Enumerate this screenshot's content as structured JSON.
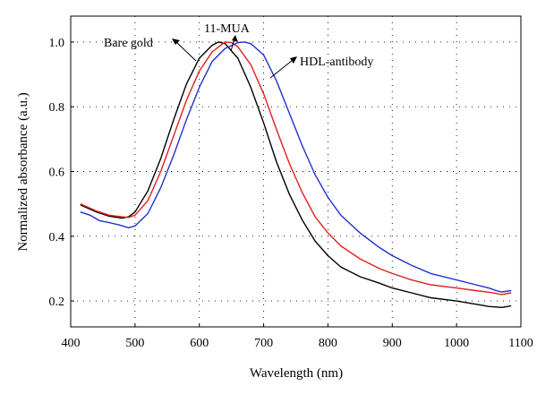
{
  "chart_data": {
    "type": "line",
    "title": "",
    "xlabel": "Wavelength (nm)",
    "ylabel": "Normalized absorbance (a.u.)",
    "xlim": [
      400,
      1100
    ],
    "ylim": [
      0.12,
      1.08
    ],
    "xticks": [
      400,
      500,
      600,
      700,
      800,
      900,
      1000,
      1100
    ],
    "yticks": [
      0.2,
      0.4,
      0.6,
      0.8,
      1.0
    ],
    "ytick_labels": [
      "0.2",
      "0.4",
      "0.6",
      "0.8",
      "1.0"
    ],
    "grid": true,
    "series": [
      {
        "name": "Bare gold",
        "color": "#000000",
        "points": [
          [
            415,
            0.497
          ],
          [
            440,
            0.475
          ],
          [
            460,
            0.462
          ],
          [
            480,
            0.456
          ],
          [
            490,
            0.46
          ],
          [
            500,
            0.475
          ],
          [
            520,
            0.54
          ],
          [
            540,
            0.64
          ],
          [
            560,
            0.76
          ],
          [
            580,
            0.87
          ],
          [
            600,
            0.95
          ],
          [
            620,
            0.99
          ],
          [
            630,
            1.0
          ],
          [
            640,
            0.995
          ],
          [
            660,
            0.95
          ],
          [
            680,
            0.86
          ],
          [
            700,
            0.75
          ],
          [
            720,
            0.63
          ],
          [
            740,
            0.53
          ],
          [
            760,
            0.45
          ],
          [
            780,
            0.385
          ],
          [
            800,
            0.34
          ],
          [
            820,
            0.305
          ],
          [
            850,
            0.275
          ],
          [
            880,
            0.255
          ],
          [
            900,
            0.24
          ],
          [
            930,
            0.225
          ],
          [
            960,
            0.21
          ],
          [
            1000,
            0.2
          ],
          [
            1030,
            0.19
          ],
          [
            1050,
            0.183
          ],
          [
            1070,
            0.18
          ],
          [
            1080,
            0.183
          ],
          [
            1085,
            0.185
          ]
        ]
      },
      {
        "name": "11-MUA",
        "color": "#e0201c",
        "points": [
          [
            415,
            0.5
          ],
          [
            440,
            0.478
          ],
          [
            460,
            0.465
          ],
          [
            480,
            0.46
          ],
          [
            490,
            0.458
          ],
          [
            500,
            0.465
          ],
          [
            520,
            0.51
          ],
          [
            540,
            0.6
          ],
          [
            560,
            0.71
          ],
          [
            580,
            0.82
          ],
          [
            600,
            0.91
          ],
          [
            620,
            0.97
          ],
          [
            640,
            1.0
          ],
          [
            650,
            0.998
          ],
          [
            660,
            0.985
          ],
          [
            680,
            0.93
          ],
          [
            700,
            0.84
          ],
          [
            720,
            0.73
          ],
          [
            740,
            0.625
          ],
          [
            760,
            0.535
          ],
          [
            780,
            0.46
          ],
          [
            800,
            0.41
          ],
          [
            820,
            0.37
          ],
          [
            850,
            0.33
          ],
          [
            880,
            0.3
          ],
          [
            900,
            0.285
          ],
          [
            930,
            0.265
          ],
          [
            960,
            0.25
          ],
          [
            1000,
            0.24
          ],
          [
            1030,
            0.232
          ],
          [
            1050,
            0.227
          ],
          [
            1060,
            0.224
          ],
          [
            1070,
            0.22
          ],
          [
            1085,
            0.225
          ]
        ]
      },
      {
        "name": "HDL-antibody",
        "color": "#1f30d0",
        "points": [
          [
            415,
            0.475
          ],
          [
            430,
            0.465
          ],
          [
            445,
            0.448
          ],
          [
            460,
            0.442
          ],
          [
            475,
            0.435
          ],
          [
            490,
            0.426
          ],
          [
            500,
            0.432
          ],
          [
            520,
            0.47
          ],
          [
            540,
            0.55
          ],
          [
            560,
            0.65
          ],
          [
            580,
            0.76
          ],
          [
            600,
            0.86
          ],
          [
            620,
            0.94
          ],
          [
            640,
            0.98
          ],
          [
            660,
            0.998
          ],
          [
            670,
            1.0
          ],
          [
            680,
            0.995
          ],
          [
            700,
            0.96
          ],
          [
            720,
            0.88
          ],
          [
            740,
            0.78
          ],
          [
            760,
            0.68
          ],
          [
            780,
            0.59
          ],
          [
            800,
            0.52
          ],
          [
            820,
            0.465
          ],
          [
            850,
            0.41
          ],
          [
            880,
            0.365
          ],
          [
            900,
            0.34
          ],
          [
            930,
            0.31
          ],
          [
            960,
            0.285
          ],
          [
            1000,
            0.265
          ],
          [
            1030,
            0.25
          ],
          [
            1050,
            0.24
          ],
          [
            1060,
            0.233
          ],
          [
            1070,
            0.228
          ],
          [
            1085,
            0.232
          ]
        ]
      }
    ],
    "annotations": [
      {
        "id": "bare-gold",
        "text": "Bare gold"
      },
      {
        "id": "mua",
        "text": "11-MUA"
      },
      {
        "id": "hdl",
        "text": "HDL-antibody"
      }
    ]
  }
}
